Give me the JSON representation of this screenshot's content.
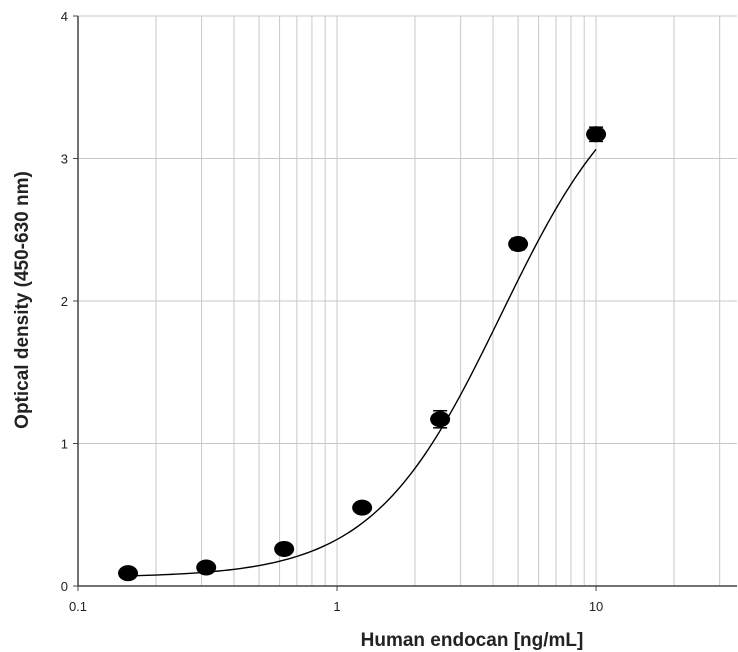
{
  "chart_data": {
    "type": "scatter",
    "title": "",
    "xlabel": "Human endocan [ng/mL]",
    "ylabel": "Optical density (450-630 nm)",
    "xscale": "log",
    "xlim": [
      0.1,
      35
    ],
    "ylim": [
      0,
      4
    ],
    "grid": true,
    "x_ticks": [
      {
        "value": 0.1,
        "label": "0.1"
      },
      {
        "value": 1,
        "label": "1"
      },
      {
        "value": 10,
        "label": "10"
      }
    ],
    "y_ticks": [
      {
        "value": 0,
        "label": "0"
      },
      {
        "value": 1,
        "label": "1"
      },
      {
        "value": 2,
        "label": "2"
      },
      {
        "value": 3,
        "label": "3"
      },
      {
        "value": 4,
        "label": "4"
      }
    ],
    "series": [
      {
        "points": [
          {
            "x": 0.156,
            "y": 0.09
          },
          {
            "x": 0.3125,
            "y": 0.13
          },
          {
            "x": 0.625,
            "y": 0.26
          },
          {
            "x": 1.25,
            "y": 0.55
          },
          {
            "x": 2.5,
            "y": 1.17
          },
          {
            "x": 5,
            "y": 2.4
          },
          {
            "x": 10,
            "y": 3.17
          }
        ],
        "error": [
          0.02,
          0.02,
          0.02,
          0.03,
          0.06,
          0.04,
          0.05
        ],
        "fit_curve": "4PL",
        "fit_params": {
          "a": 0.06,
          "b": 1.75,
          "c": 4.3,
          "d": 3.75
        },
        "marker_color": "#000000",
        "line_color": "#000000"
      }
    ]
  }
}
